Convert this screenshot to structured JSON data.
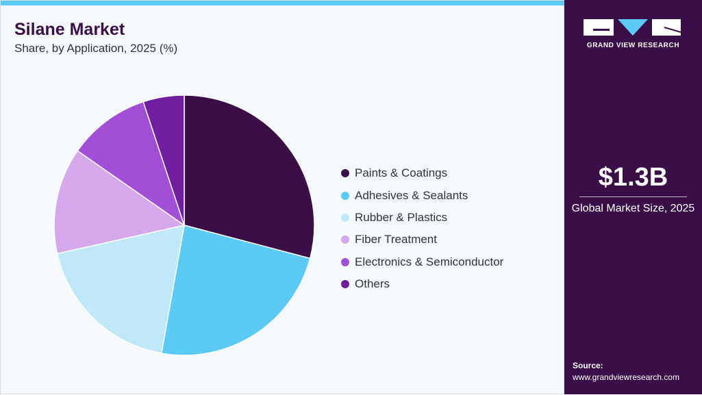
{
  "header": {
    "title": "Silane Market",
    "subtitle": "Share, by Application, 2025 (%)"
  },
  "chart_data": {
    "type": "pie",
    "categories": [
      "Paints & Coatings",
      "Adhesives & Sealants",
      "Rubber & Plastics",
      "Fiber Treatment",
      "Electronics & Semiconductor",
      "Others"
    ],
    "values": [
      29.1,
      23.7,
      18.7,
      13.2,
      10.2,
      5.1
    ],
    "colors": [
      "#3a0f47",
      "#5bcbf5",
      "#bfe9f9",
      "#d4a8ea",
      "#a24fd8",
      "#6e1e9e"
    ],
    "legend_position": "right",
    "start_angle": "top, clockwise"
  },
  "sidebar": {
    "logo_text": "GRAND VIEW RESEARCH",
    "market_size": "$1.3B",
    "market_size_label": "Global Market Size, 2025",
    "source_label": "Source:",
    "source_url": "www.grandviewresearch.com"
  }
}
